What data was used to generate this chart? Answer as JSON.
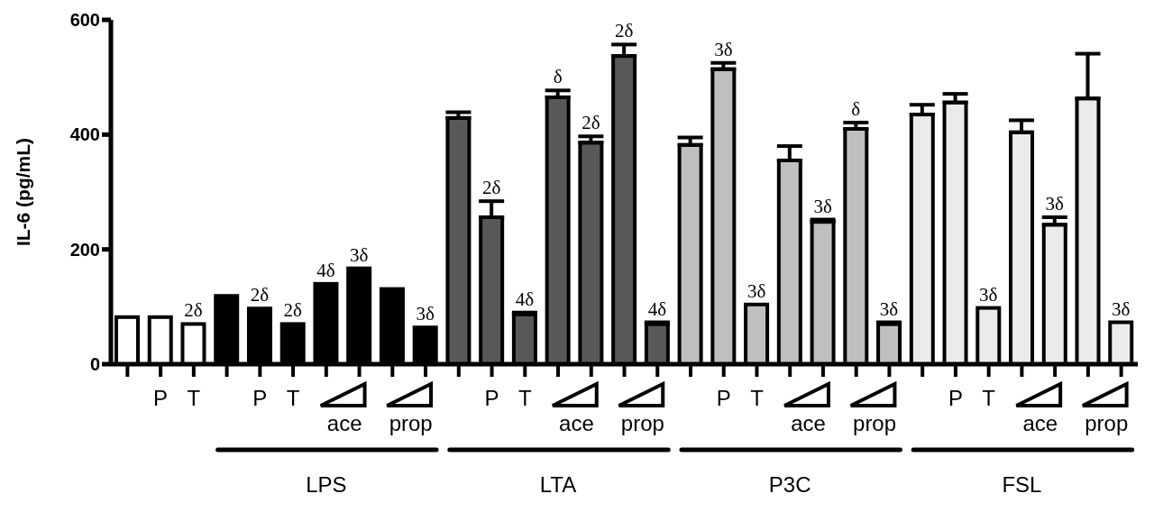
{
  "chart_data": {
    "type": "bar",
    "ylabel": "IL-6 (pg/mL)",
    "categories": [
      null,
      "P",
      "T",
      null,
      "P",
      "T",
      null,
      null,
      null,
      null,
      null,
      "P",
      "T",
      null,
      null,
      null,
      null,
      null,
      "P",
      "T",
      null,
      null,
      null,
      null,
      null,
      "P",
      "T",
      null,
      null,
      null,
      null
    ],
    "values": [
      82,
      82,
      70,
      119,
      94,
      70,
      140,
      167,
      131,
      64,
      429,
      256,
      87,
      465,
      386,
      537,
      70,
      382,
      514,
      104,
      355,
      248,
      410,
      70,
      435,
      456,
      98,
      404,
      243,
      463,
      73
    ],
    "errors": [
      null,
      null,
      null,
      null,
      [
        94,
        97
      ],
      null,
      null,
      null,
      null,
      null,
      [
        429,
        439
      ],
      [
        256,
        284
      ],
      [
        87,
        90
      ],
      [
        465,
        477
      ],
      [
        386,
        397
      ],
      [
        537,
        557
      ],
      [
        70,
        73
      ],
      [
        382,
        395
      ],
      [
        514,
        525
      ],
      null,
      [
        355,
        380
      ],
      [
        248,
        252
      ],
      [
        410,
        421
      ],
      [
        70,
        73
      ],
      [
        435,
        452
      ],
      [
        456,
        471
      ],
      null,
      [
        404,
        425
      ],
      [
        243,
        256
      ],
      [
        463,
        541
      ],
      null
    ],
    "colors": [
      "#ffffff",
      "#ffffff",
      "#ffffff",
      "#000000",
      "#000000",
      "#000000",
      "#000000",
      "#000000",
      "#000000",
      "#000000",
      "#595959",
      "#595959",
      "#595959",
      "#595959",
      "#595959",
      "#595959",
      "#595959",
      "#bfbfbf",
      "#bfbfbf",
      "#bfbfbf",
      "#bfbfbf",
      "#bfbfbf",
      "#bfbfbf",
      "#bfbfbf",
      "#ebebeb",
      "#ebebeb",
      "#ebebeb",
      "#ebebeb",
      "#ebebeb",
      "#ebebeb",
      "#ebebeb"
    ],
    "ylim": [
      0,
      600
    ],
    "yticks": [
      0,
      200,
      400,
      600
    ],
    "annotations": [
      {
        "text": "2δ",
        "y": 70
      },
      {
        "text": "2δ",
        "y": 97
      },
      {
        "text": "2δ",
        "y": 70
      },
      {
        "text": "4δ",
        "y": 140
      },
      {
        "text": "3δ",
        "y": 167
      },
      {
        "text": "3δ",
        "y": 64
      },
      {
        "text": "2δ",
        "y": 284
      },
      {
        "text": "4δ",
        "y": 90
      },
      {
        "text": "δ",
        "y": 477
      },
      {
        "text": "2δ",
        "y": 397
      },
      {
        "text": "2δ",
        "y": 557
      },
      {
        "text": "4δ",
        "y": 73
      },
      {
        "text": "3δ",
        "y": 525
      },
      {
        "text": "3δ",
        "y": 104
      },
      {
        "text": "3δ",
        "y": 252
      },
      {
        "text": "δ",
        "y": 421
      },
      {
        "text": "3δ",
        "y": 73
      },
      {
        "text": "3δ",
        "y": 98
      },
      {
        "text": "3δ",
        "y": 256
      },
      {
        "text": "3δ",
        "y": 73
      },
      "ace",
      "prop",
      "ace",
      "prop",
      "ace",
      "prop",
      "ace",
      "prop",
      "LPS",
      "LTA",
      "P3C",
      "FSL"
    ]
  }
}
